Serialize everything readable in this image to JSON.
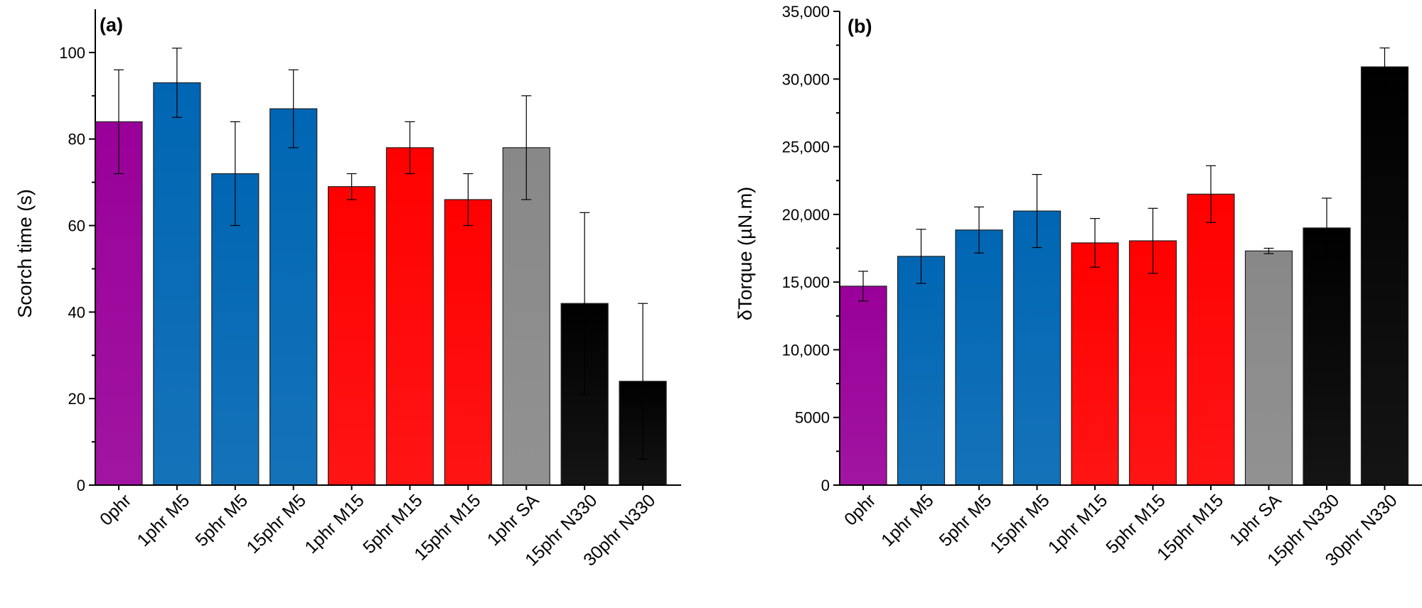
{
  "chart_data": [
    {
      "type": "bar",
      "panel_label": "(a)",
      "title": "",
      "xlabel": "",
      "ylabel": "Scorch time (s)",
      "ylim": [
        0,
        110
      ],
      "yticks": [
        0,
        20,
        40,
        60,
        80,
        100
      ],
      "ytick_labels": [
        "0",
        "20",
        "40",
        "60",
        "80",
        "100"
      ],
      "categories": [
        "0phr",
        "1phr M5",
        "5phr M5",
        "15phr M5",
        "1phr M15",
        "5phr M15",
        "15phr M15",
        "1phr SA",
        "15phr N330",
        "30phr N330"
      ],
      "values": [
        84,
        93,
        72,
        87,
        69,
        78,
        66,
        78,
        42,
        24
      ],
      "errors": [
        12,
        8,
        12,
        9,
        3,
        6,
        6,
        12,
        21,
        18
      ],
      "colors": [
        "#990099",
        "#0066b3",
        "#0066b3",
        "#0066b3",
        "#ff0000",
        "#ff0000",
        "#ff0000",
        "#888888",
        "#000000",
        "#000000"
      ],
      "grid": false,
      "legend": "none"
    },
    {
      "type": "bar",
      "panel_label": "(b)",
      "title": "",
      "xlabel": "",
      "ylabel": "δTorque (µN.m)",
      "ylim": [
        0,
        35000
      ],
      "yticks": [
        0,
        5000,
        10000,
        15000,
        20000,
        25000,
        30000,
        35000
      ],
      "ytick_labels": [
        "0",
        "5000",
        "10,000",
        "15,000",
        "20,000",
        "25,000",
        "30,000",
        "35,000"
      ],
      "categories": [
        "0phr",
        "1phr M5",
        "5phr M5",
        "15phr M5",
        "1phr M15",
        "5phr M15",
        "15phr M15",
        "1phr SA",
        "15phr N330",
        "30phr N330"
      ],
      "values": [
        14700,
        16900,
        18850,
        20250,
        17900,
        18050,
        21500,
        17300,
        19000,
        30900
      ],
      "errors": [
        1100,
        2000,
        1700,
        2700,
        1800,
        2400,
        2100,
        200,
        2200,
        1400
      ],
      "colors": [
        "#990099",
        "#0066b3",
        "#0066b3",
        "#0066b3",
        "#ff0000",
        "#ff0000",
        "#ff0000",
        "#888888",
        "#000000",
        "#000000"
      ],
      "grid": false,
      "legend": "none"
    }
  ]
}
